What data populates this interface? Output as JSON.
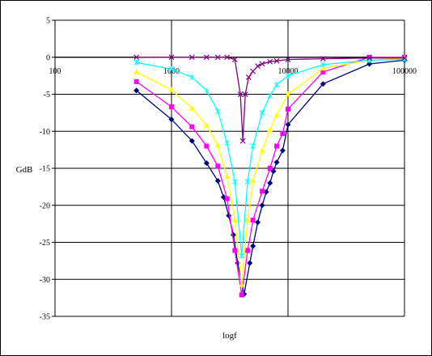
{
  "chart_data": {
    "type": "scatter",
    "xlabel": "logf",
    "ylabel": "GdB",
    "x_scale": "log",
    "xlim": [
      100,
      100000
    ],
    "ylim": [
      -35,
      5
    ],
    "x_ticks": [
      100,
      1000,
      10000,
      100000
    ],
    "y_ticks": [
      5,
      0,
      -5,
      -10,
      -15,
      -20,
      -25,
      -30,
      -35
    ],
    "grid": true,
    "legend": "none",
    "series": [
      {
        "color": "#000080",
        "marker": "diamond",
        "points": [
          [
            500,
            -4.5
          ],
          [
            1000,
            -8.4
          ],
          [
            1500,
            -11.3
          ],
          [
            2000,
            -14.3
          ],
          [
            2500,
            -16.7
          ],
          [
            2800,
            -18.9
          ],
          [
            3100,
            -21.4
          ],
          [
            3400,
            -24.0
          ],
          [
            3700,
            -27.8
          ],
          [
            4200,
            -32.0
          ],
          [
            4700,
            -27.8
          ],
          [
            5000,
            -25.5
          ],
          [
            5500,
            -22.3
          ],
          [
            6000,
            -20.0
          ],
          [
            6500,
            -18.2
          ],
          [
            7000,
            -17.0
          ],
          [
            7500,
            -15.4
          ],
          [
            8000,
            -14.2
          ],
          [
            9000,
            -12.6
          ],
          [
            10000,
            -9.1
          ],
          [
            20000,
            -3.6
          ],
          [
            50000,
            -0.9
          ],
          [
            100000,
            -0.4
          ]
        ]
      },
      {
        "color": "#ff00ff",
        "marker": "square",
        "points": [
          [
            500,
            -3.3
          ],
          [
            1000,
            -6.7
          ],
          [
            1500,
            -9.4
          ],
          [
            2000,
            -12.0
          ],
          [
            2500,
            -14.7
          ],
          [
            3000,
            -19.1
          ],
          [
            3500,
            -26.1
          ],
          [
            4000,
            -32.1
          ],
          [
            4500,
            -26.1
          ],
          [
            5000,
            -22.0
          ],
          [
            6000,
            -18.1
          ],
          [
            7000,
            -15.0
          ],
          [
            8000,
            -12.0
          ],
          [
            9000,
            -10.3
          ],
          [
            10000,
            -7.0
          ],
          [
            20000,
            -2.0
          ],
          [
            50000,
            0.0
          ],
          [
            100000,
            0.0
          ]
        ]
      },
      {
        "color": "#ffff00",
        "marker": "triangle",
        "points": [
          [
            500,
            -2.0
          ],
          [
            1000,
            -4.4
          ],
          [
            1500,
            -6.9
          ],
          [
            2000,
            -9.2
          ],
          [
            2500,
            -11.9
          ],
          [
            3000,
            -16.1
          ],
          [
            3500,
            -22.0
          ],
          [
            4000,
            -30.7
          ],
          [
            4500,
            -22.0
          ],
          [
            5000,
            -16.7
          ],
          [
            6000,
            -12.6
          ],
          [
            7000,
            -9.8
          ],
          [
            8000,
            -7.8
          ],
          [
            10000,
            -5.0
          ],
          [
            20000,
            -1.5
          ],
          [
            50000,
            -0.4
          ],
          [
            100000,
            -0.1
          ]
        ]
      },
      {
        "color": "#00ffff",
        "marker": "star",
        "points": [
          [
            500,
            -0.7
          ],
          [
            1000,
            -1.6
          ],
          [
            1500,
            -2.7
          ],
          [
            2000,
            -4.5
          ],
          [
            2500,
            -7.3
          ],
          [
            3000,
            -11.6
          ],
          [
            3500,
            -16.8
          ],
          [
            4000,
            -26.8
          ],
          [
            4500,
            -16.8
          ],
          [
            5000,
            -12.0
          ],
          [
            6000,
            -7.5
          ],
          [
            7000,
            -5.2
          ],
          [
            8000,
            -3.7
          ],
          [
            10000,
            -2.5
          ],
          [
            20000,
            -1.0
          ],
          [
            50000,
            -0.4
          ],
          [
            100000,
            -0.3
          ]
        ]
      },
      {
        "color": "#800080",
        "marker": "x",
        "points": [
          [
            500,
            0
          ],
          [
            1000,
            0
          ],
          [
            1500,
            0
          ],
          [
            2000,
            0
          ],
          [
            2500,
            0
          ],
          [
            3000,
            0
          ],
          [
            3500,
            -0.3
          ],
          [
            3900,
            -5.0
          ],
          [
            4100,
            -11.3
          ],
          [
            4300,
            -5.0
          ],
          [
            4600,
            -2.7
          ],
          [
            5000,
            -1.9
          ],
          [
            5500,
            -1.2
          ],
          [
            6000,
            -0.9
          ],
          [
            7000,
            -0.6
          ],
          [
            8000,
            -0.5
          ],
          [
            10000,
            -0.3
          ],
          [
            20000,
            -0.2
          ],
          [
            50000,
            -0.1
          ],
          [
            100000,
            -0.1
          ]
        ]
      }
    ]
  }
}
